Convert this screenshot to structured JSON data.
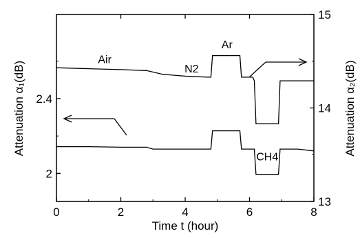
{
  "chart_data": {
    "type": "line",
    "xlabel": "Time t (hour)",
    "ylabel_left": "Attenuation α₁(dB)",
    "ylabel_right": "Attenuation α₂(dB)",
    "xlim": [
      0,
      8
    ],
    "ylim_left": [
      1.85,
      2.85
    ],
    "ylim_right": [
      13,
      15
    ],
    "x_ticks": [
      "0",
      "2",
      "4",
      "6",
      "8"
    ],
    "y_ticks_left": [
      "2",
      "2.4"
    ],
    "y_ticks_right": [
      "13",
      "14",
      "15"
    ],
    "series": [
      {
        "axis": "right",
        "x": [
          0.0,
          1.0,
          2.0,
          2.8,
          3.3,
          4.0,
          4.7,
          4.8,
          4.85,
          5.7,
          5.75,
          5.8,
          6.1,
          6.15,
          6.2,
          6.9,
          6.95,
          7.0,
          7.6,
          8.0
        ],
        "y": [
          14.43,
          14.42,
          14.41,
          14.4,
          14.36,
          14.34,
          14.33,
          14.33,
          14.56,
          14.56,
          14.33,
          14.33,
          14.33,
          14.29,
          13.83,
          13.83,
          14.29,
          14.29,
          14.29,
          14.29
        ]
      },
      {
        "axis": "left",
        "x": [
          0.0,
          1.0,
          2.0,
          2.8,
          3.0,
          4.0,
          4.7,
          4.8,
          4.85,
          5.7,
          5.75,
          5.85,
          6.15,
          6.2,
          6.9,
          6.95,
          7.5,
          8.0
        ],
        "y": [
          2.143,
          2.143,
          2.14,
          2.14,
          2.13,
          2.13,
          2.13,
          2.13,
          2.228,
          2.228,
          2.13,
          2.13,
          2.13,
          1.995,
          1.995,
          2.13,
          2.13,
          2.12
        ]
      }
    ],
    "annotations": [
      {
        "text": "Air",
        "x": 1.5,
        "axis": "right",
        "y": 14.48
      },
      {
        "text": "N2",
        "x": 4.2,
        "axis": "right",
        "y": 14.38
      },
      {
        "text": "Ar",
        "x": 5.3,
        "axis": "right",
        "y": 14.64
      },
      {
        "text": "CH4",
        "x": 6.55,
        "axis": "left",
        "y": 2.07
      }
    ]
  }
}
